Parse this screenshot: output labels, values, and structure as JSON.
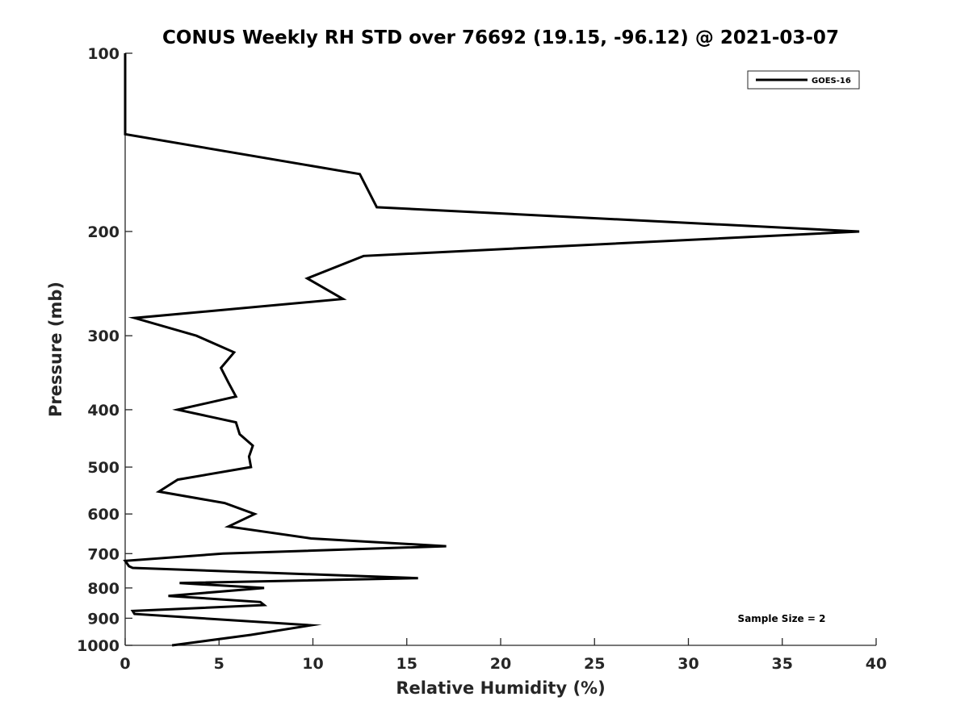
{
  "chart_data": {
    "type": "line",
    "title": "CONUS Weekly RH STD over 76692 (19.15, -96.12) @ 2021-03-07",
    "xlabel": "Relative Humidity (%)",
    "ylabel": "Pressure (mb)",
    "xlim": [
      0,
      40
    ],
    "ylim": [
      100,
      1000
    ],
    "y_scale": "log",
    "y_reversed": true,
    "x_ticks": [
      0,
      5,
      10,
      15,
      20,
      25,
      30,
      35,
      40
    ],
    "y_ticks": [
      100,
      200,
      300,
      400,
      500,
      600,
      700,
      800,
      900,
      1000
    ],
    "grid": false,
    "legend_position": "top-right",
    "series": [
      {
        "name": "GOES-16",
        "color": "#000000",
        "points": [
          [
            0,
            100
          ],
          [
            0,
            137
          ],
          [
            12.5,
            160
          ],
          [
            13.4,
            182
          ],
          [
            39.1,
            200
          ],
          [
            12.7,
            220
          ],
          [
            9.7,
            240
          ],
          [
            11.6,
            260
          ],
          [
            0.5,
            280
          ],
          [
            3.8,
            300
          ],
          [
            5.8,
            320
          ],
          [
            5.1,
            340
          ],
          [
            5.5,
            360
          ],
          [
            5.9,
            380
          ],
          [
            2.8,
            400
          ],
          [
            5.9,
            420
          ],
          [
            6.1,
            440
          ],
          [
            6.8,
            460
          ],
          [
            6.6,
            480
          ],
          [
            6.7,
            500
          ],
          [
            2.8,
            525
          ],
          [
            1.8,
            550
          ],
          [
            5.3,
            575
          ],
          [
            6.9,
            600
          ],
          [
            5.5,
            630
          ],
          [
            9.9,
            660
          ],
          [
            17.1,
            680
          ],
          [
            5.2,
            700
          ],
          [
            0,
            720
          ],
          [
            0.2,
            735
          ],
          [
            0.4,
            740
          ],
          [
            15.6,
            770
          ],
          [
            2.9,
            785
          ],
          [
            7.4,
            800
          ],
          [
            2.3,
            825
          ],
          [
            7.2,
            845
          ],
          [
            7.4,
            855
          ],
          [
            0.4,
            875
          ],
          [
            0.5,
            885
          ],
          [
            9.9,
            925
          ],
          [
            6.7,
            960
          ],
          [
            2.5,
            1000
          ]
        ]
      }
    ],
    "annotation": "Sample Size = 2"
  }
}
